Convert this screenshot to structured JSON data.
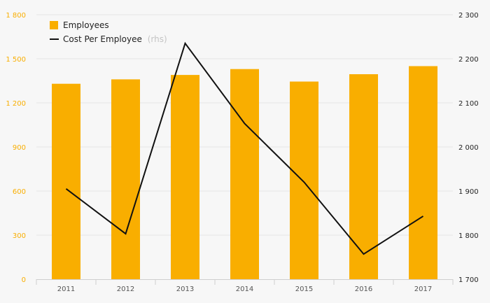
{
  "chart_data": {
    "type": "bar",
    "categories": [
      "2011",
      "2012",
      "2013",
      "2014",
      "2015",
      "2016",
      "2017"
    ],
    "series": [
      {
        "name": "Employees",
        "type": "bar",
        "axis": "left",
        "color": "#f9ae00",
        "values": [
          1330,
          1360,
          1390,
          1430,
          1345,
          1395,
          1450
        ]
      },
      {
        "name": "Cost Per Employee",
        "name_note": "(rhs)",
        "type": "line",
        "axis": "right",
        "color": "#111111",
        "values": [
          1905,
          1803,
          2235,
          2053,
          1920,
          1757,
          1843
        ]
      }
    ],
    "y_left": {
      "range": [
        0,
        1800
      ],
      "ticks": [
        "0",
        "300",
        "600",
        "900",
        "1 200",
        "1 500",
        "1 800"
      ],
      "tick_values": [
        0,
        300,
        600,
        900,
        1200,
        1500,
        1800
      ],
      "color": "#f9ae00"
    },
    "y_right": {
      "range": [
        1700,
        2300
      ],
      "ticks": [
        "1 700",
        "1 800",
        "1 900",
        "2 000",
        "2 100",
        "2 200",
        "2 300"
      ],
      "tick_values": [
        1700,
        1800,
        1900,
        2000,
        2100,
        2200,
        2300
      ],
      "color": "#222222"
    },
    "grid": true,
    "legend_position": "top-left"
  }
}
